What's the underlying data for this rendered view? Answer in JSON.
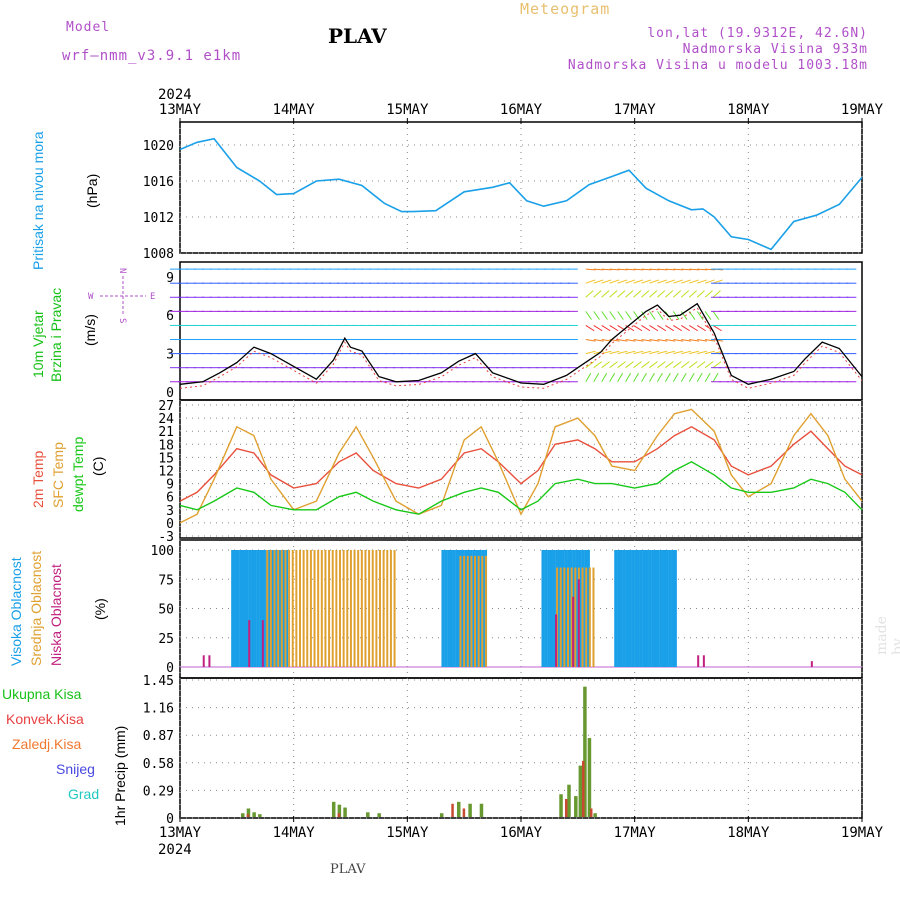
{
  "header": {
    "model_label": "Model",
    "model_name": "wrf–nmm_v3.9.1  e1km",
    "title": "PLAV",
    "meteogram_label": "Meteogram",
    "location": "lon,lat (19.9312E, 42.6N)",
    "altitude": "Nadmorska Visina 933m",
    "model_altitude": "Nadmorska Visina u modelu 1003.18m"
  },
  "credit": "made by Angel",
  "footer": "PLAV",
  "colors": {
    "pressure": "#1aa0e8",
    "wind_label": "#18c018",
    "temp2m": "#e8503c",
    "sfc_temp": "#e0a030",
    "dewpt": "#18c818",
    "high_cloud": "#1aa0e8",
    "mid_cloud": "#e0a030",
    "low_cloud": "#c02080",
    "purple": "#b050c8"
  },
  "chart_data": [
    {
      "type": "line",
      "panel": "pressure",
      "ylabel_outer": "Pritisak na nivou mora",
      "ylabel_inner": "(hPa)",
      "ylim": [
        1008,
        1022
      ],
      "yticks": [
        "1008",
        "1012",
        "1016",
        "1020"
      ],
      "grid": true,
      "x_day": [
        0,
        0.15,
        0.3,
        0.5,
        0.7,
        0.85,
        1.0,
        1.2,
        1.4,
        1.6,
        1.8,
        1.95,
        2.05,
        2.25,
        2.5,
        2.75,
        2.9,
        3.05,
        3.2,
        3.4,
        3.6,
        3.8,
        3.95,
        4.1,
        4.3,
        4.5,
        4.6,
        4.7,
        4.85,
        5.0,
        5.2,
        5.4,
        5.6,
        5.8,
        6.0
      ],
      "values": [
        1019.5,
        1020.3,
        1020.7,
        1017.5,
        1016.0,
        1014.5,
        1014.6,
        1016.0,
        1016.2,
        1015.5,
        1013.5,
        1012.6,
        1012.6,
        1012.7,
        1014.8,
        1015.3,
        1015.8,
        1013.8,
        1013.2,
        1013.8,
        1015.6,
        1016.5,
        1017.2,
        1015.2,
        1013.8,
        1012.8,
        1012.9,
        1012.0,
        1009.8,
        1009.5,
        1008.4,
        1011.5,
        1012.2,
        1013.4,
        1016.4
      ],
      "x_ticks": [
        "13MAY",
        "14MAY",
        "15MAY",
        "16MAY",
        "17MAY",
        "18MAY",
        "19MAY"
      ],
      "x_year": "2024"
    },
    {
      "type": "line",
      "panel": "wind",
      "ylabel_outer": [
        "10m Vjetar",
        "Brzina i Pravac"
      ],
      "ylabel_inner": "(m/s)",
      "compass": {
        "north": "N",
        "south": "S",
        "west": "W",
        "east": "E"
      },
      "ylim": [
        0,
        10
      ],
      "yticks": [
        "0",
        "3",
        "6",
        "9"
      ],
      "x_day": [
        0,
        0.2,
        0.35,
        0.5,
        0.65,
        0.8,
        1.0,
        1.2,
        1.35,
        1.45,
        1.5,
        1.6,
        1.75,
        1.9,
        2.1,
        2.3,
        2.45,
        2.6,
        2.75,
        3.0,
        3.2,
        3.4,
        3.55,
        3.7,
        3.8,
        3.95,
        4.1,
        4.2,
        4.3,
        4.4,
        4.55,
        4.7,
        4.85,
        5.0,
        5.2,
        5.4,
        5.5,
        5.65,
        5.8,
        6.0
      ],
      "values": [
        0.6,
        0.8,
        1.5,
        2.3,
        3.5,
        3.0,
        2.0,
        1.0,
        2.5,
        4.2,
        3.5,
        3.2,
        1.2,
        0.8,
        0.9,
        1.5,
        2.4,
        3.0,
        1.5,
        0.7,
        0.6,
        1.3,
        2.2,
        3.1,
        4.1,
        5.2,
        6.3,
        6.8,
        5.9,
        6.0,
        6.9,
        4.6,
        1.3,
        0.6,
        1.0,
        1.6,
        2.6,
        3.9,
        3.4,
        1.2
      ]
    },
    {
      "type": "line",
      "panel": "temperature",
      "ylabel_outer": [
        "2m Temp",
        "SFC Temp",
        "dewpt Temp"
      ],
      "ylabel_inner": "(C)",
      "ylim": [
        -3,
        27
      ],
      "yticks": [
        "-3",
        "0",
        "3",
        "6",
        "9",
        "12",
        "15",
        "18",
        "21",
        "24",
        "27"
      ],
      "grid": true,
      "x_day": [
        0,
        0.15,
        0.3,
        0.5,
        0.65,
        0.8,
        1.0,
        1.2,
        1.4,
        1.55,
        1.7,
        1.9,
        2.1,
        2.3,
        2.5,
        2.65,
        2.8,
        3.0,
        3.15,
        3.3,
        3.5,
        3.65,
        3.8,
        4.0,
        4.2,
        4.35,
        4.5,
        4.7,
        4.85,
        5.0,
        5.2,
        5.4,
        5.55,
        5.7,
        5.85,
        6.0
      ],
      "series": [
        {
          "name": "2m Temp",
          "values": [
            5,
            7,
            11,
            17,
            16,
            11,
            8,
            9,
            14,
            16,
            12,
            9,
            8,
            10,
            16,
            17,
            14,
            9,
            12,
            18,
            19,
            17,
            14,
            14,
            17,
            20,
            22,
            19,
            13,
            11,
            13,
            18,
            21,
            17,
            13,
            11
          ]
        },
        {
          "name": "SFC Temp",
          "values": [
            0,
            2,
            10,
            22,
            20,
            10,
            3,
            5,
            16,
            22,
            15,
            5,
            2,
            4,
            19,
            22,
            14,
            2,
            9,
            22,
            24,
            20,
            13,
            12,
            20,
            25,
            26,
            21,
            11,
            6,
            9,
            20,
            25,
            20,
            10,
            5
          ]
        },
        {
          "name": "dewpt Temp",
          "values": [
            4,
            3,
            5,
            8,
            7,
            4,
            3,
            3,
            6,
            7,
            5,
            3,
            2,
            5,
            7,
            8,
            7,
            3,
            5,
            9,
            10,
            9,
            9,
            8,
            9,
            12,
            14,
            11,
            8,
            7,
            7,
            8,
            10,
            9,
            7,
            3
          ]
        }
      ]
    },
    {
      "type": "bar",
      "panel": "clouds",
      "ylabel_outer": [
        "Visoka Oblacnost",
        "Srednja Oblacnost",
        "Niska Oblacnost"
      ],
      "ylabel_inner": "(%)",
      "ylim": [
        0,
        100
      ],
      "yticks": [
        "0",
        "25",
        "50",
        "75",
        "100"
      ],
      "grid": true,
      "high_cloud_runs": [
        [
          0.45,
          0.95,
          100
        ],
        [
          2.3,
          2.68,
          100
        ],
        [
          3.18,
          3.58,
          100
        ],
        [
          3.82,
          4.35,
          100
        ]
      ],
      "mid_cloud_runs": [
        [
          0.75,
          1.9,
          100
        ],
        [
          2.45,
          2.68,
          95
        ],
        [
          3.3,
          3.62,
          85
        ]
      ],
      "low_cloud_spikes": [
        [
          0.2,
          10
        ],
        [
          0.25,
          10
        ],
        [
          0.6,
          40
        ],
        [
          0.72,
          40
        ],
        [
          3.3,
          45
        ],
        [
          3.45,
          60
        ],
        [
          3.5,
          75
        ],
        [
          4.55,
          10
        ],
        [
          4.6,
          10
        ],
        [
          5.55,
          5
        ]
      ]
    },
    {
      "type": "bar",
      "panel": "precipitation",
      "ylabel_outer": [
        "Ukupna Kisa",
        "Konvek.Kisa",
        "Zaledj.Kisa",
        "Snijeg",
        "Grad"
      ],
      "ylabel_inner": "1hr Precip (mm)",
      "ylim": [
        0,
        1.45
      ],
      "yticks": [
        "0",
        "0.29",
        "0.58",
        "0.87",
        "1.16",
        "1.45"
      ],
      "grid": true,
      "total": [
        [
          0.55,
          0.05
        ],
        [
          0.6,
          0.1
        ],
        [
          0.65,
          0.06
        ],
        [
          0.7,
          0.04
        ],
        [
          1.35,
          0.17
        ],
        [
          1.4,
          0.14
        ],
        [
          1.45,
          0.11
        ],
        [
          1.65,
          0.06
        ],
        [
          1.75,
          0.05
        ],
        [
          2.3,
          0.05
        ],
        [
          2.45,
          0.17
        ],
        [
          2.55,
          0.15
        ],
        [
          2.65,
          0.15
        ],
        [
          3.35,
          0.25
        ],
        [
          3.42,
          0.35
        ],
        [
          3.48,
          0.23
        ],
        [
          3.52,
          0.55
        ],
        [
          3.56,
          1.38
        ],
        [
          3.6,
          0.84
        ],
        [
          3.65,
          0.05
        ]
      ],
      "convective": [
        [
          0.6,
          0.04
        ],
        [
          1.4,
          0.05
        ],
        [
          2.4,
          0.15
        ],
        [
          2.5,
          0.1
        ],
        [
          3.4,
          0.2
        ],
        [
          3.55,
          0.6
        ],
        [
          3.62,
          0.1
        ]
      ]
    }
  ]
}
